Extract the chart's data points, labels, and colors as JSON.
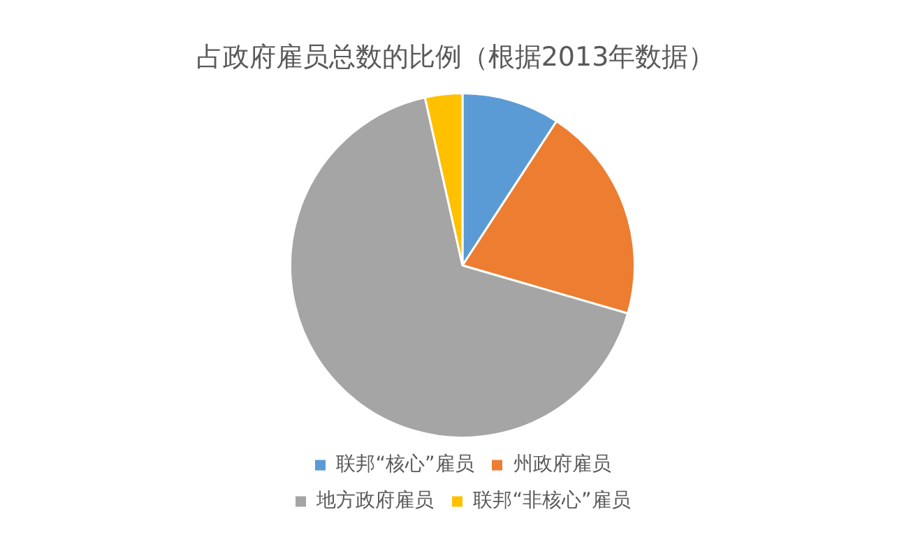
{
  "chart_data": {
    "type": "pie",
    "title": "占政府雇员总数的比例（根据2013年数据）",
    "categories": [
      "联邦“核心”雇员",
      "州政府雇员",
      "地方政府雇员",
      "联邦“非核心”雇员"
    ],
    "values": [
      9.2,
      20.3,
      67.0,
      3.5
    ],
    "colors": [
      "#5b9bd5",
      "#ed7d31",
      "#a5a5a5",
      "#ffc000"
    ],
    "legend": "bottom"
  }
}
